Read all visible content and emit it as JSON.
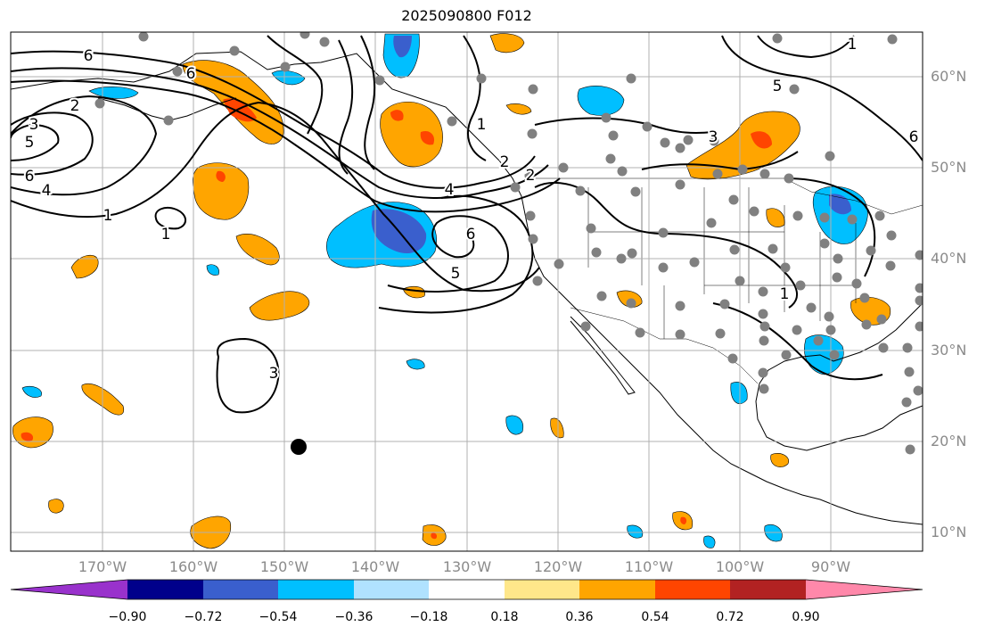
{
  "title": "2025090800 F012",
  "lon_labels": [
    "170°W",
    "160°W",
    "150°W",
    "140°W",
    "130°W",
    "120°W",
    "110°W",
    "100°W",
    "90°W"
  ],
  "lat_labels": [
    "60°N",
    "50°N",
    "40°N",
    "30°N",
    "20°N",
    "10°N"
  ],
  "colorbar": {
    "colors": [
      "#9932CC",
      "#00008B",
      "#3A5FCD",
      "#00BFFF",
      "#B0E2FF",
      "#FFFFFF",
      "#FFE78A",
      "#FFA500",
      "#FF4500",
      "#B22222",
      "#FF88AA"
    ],
    "tick_labels": [
      "−0.90",
      "−0.72",
      "−0.54",
      "−0.36",
      "−0.18",
      "0.18",
      "0.36",
      "0.54",
      "0.72",
      "0.90"
    ]
  },
  "contour_labels": [
    "6",
    "6",
    "2",
    "3",
    "5",
    "6",
    "4",
    "1",
    "1",
    "1",
    "3",
    "4",
    "2",
    "6",
    "5",
    "1",
    "5",
    "3",
    "6",
    "2",
    "1"
  ],
  "colors": {
    "negative_light": "#00BFFF",
    "negative_mid": "#3A5FCD",
    "positive_light": "#FFA500",
    "positive_strong": "#FF4500",
    "station_marker": "#808080",
    "grid": "#b0b0b0",
    "contour": "#000000"
  }
}
